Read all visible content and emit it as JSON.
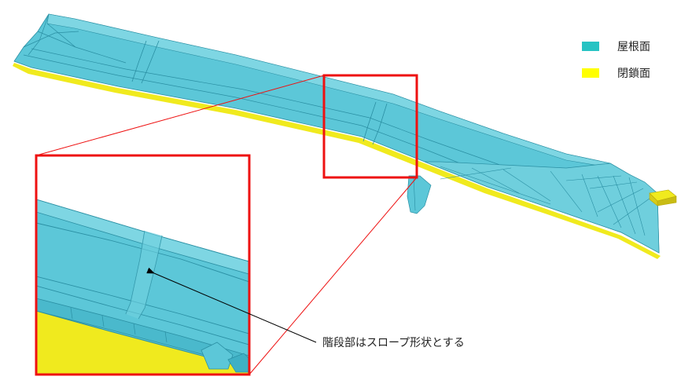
{
  "colors": {
    "roof": "#5cc7d8",
    "roof_light": "#7ed6e3",
    "roof_dark": "#3fb0c4",
    "edge": "#2a8fa3",
    "closure": "#f0ea1e",
    "closure_dark": "#b8a80a",
    "highlight": "#ee1111",
    "arrow": "#000000"
  },
  "legend": [
    {
      "label": "屋根面",
      "color": "#27c3c3",
      "icon": "roof-surface-swatch"
    },
    {
      "label": "閉鎖面",
      "color": "#ffff00",
      "icon": "closure-surface-swatch"
    }
  ],
  "callout": {
    "text": "階段部はスロープ形状とする"
  }
}
